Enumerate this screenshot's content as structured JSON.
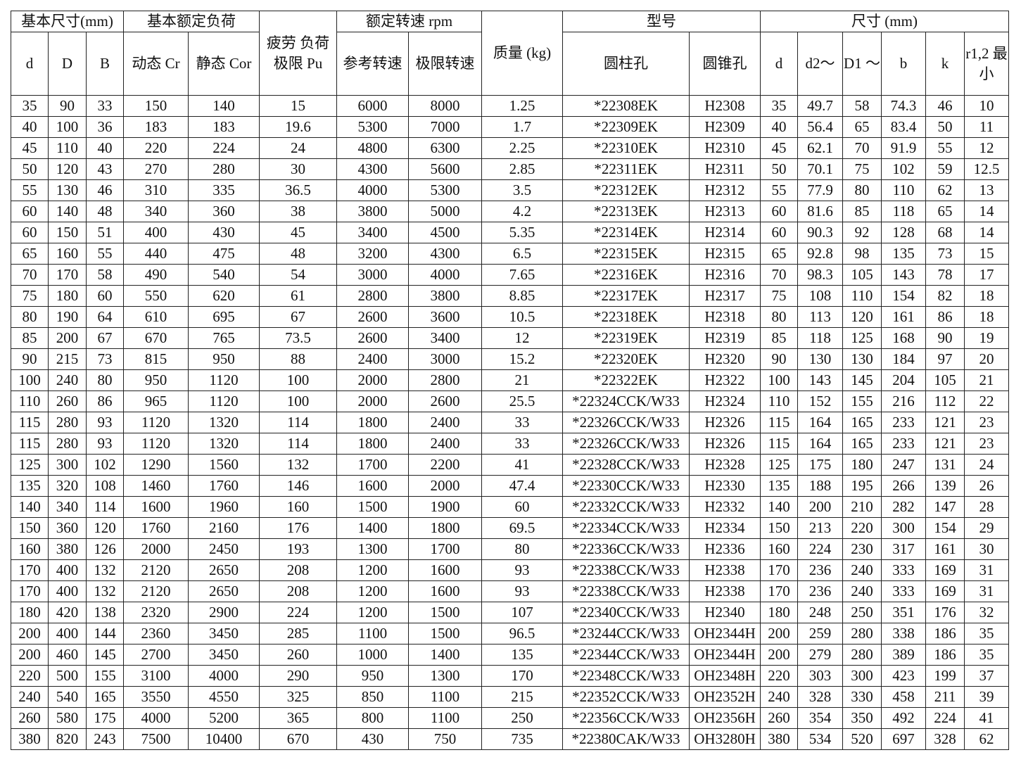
{
  "header": {
    "group_basic_dims": "基本尺寸(mm)",
    "group_load": "基本额定负荷",
    "fatigue": "疲劳 负荷 极限 Pu",
    "group_speed": "额定转速 rpm",
    "mass": "质量 (kg)",
    "group_model": "型号",
    "group_dims": "尺寸 (mm)",
    "cols": [
      "d",
      "D",
      "B",
      "动态 Cr",
      "静态 Cor",
      "参考转速",
      "极限转速",
      "圆柱孔",
      "圆锥孔",
      "d",
      "d2～",
      "D1 ～",
      "b",
      "k",
      "r1,2 最小"
    ]
  },
  "rows": [
    [
      "35",
      "90",
      "33",
      "150",
      "140",
      "15",
      "6000",
      "8000",
      "1.25",
      "*22308EK",
      "H2308",
      "35",
      "49.7",
      "58",
      "74.3",
      "46",
      "10"
    ],
    [
      "40",
      "100",
      "36",
      "183",
      "183",
      "19.6",
      "5300",
      "7000",
      "1.7",
      "*22309EK",
      "H2309",
      "40",
      "56.4",
      "65",
      "83.4",
      "50",
      "11"
    ],
    [
      "45",
      "110",
      "40",
      "220",
      "224",
      "24",
      "4800",
      "6300",
      "2.25",
      "*22310EK",
      "H2310",
      "45",
      "62.1",
      "70",
      "91.9",
      "55",
      "12"
    ],
    [
      "50",
      "120",
      "43",
      "270",
      "280",
      "30",
      "4300",
      "5600",
      "2.85",
      "*22311EK",
      "H2311",
      "50",
      "70.1",
      "75",
      "102",
      "59",
      "12.5"
    ],
    [
      "55",
      "130",
      "46",
      "310",
      "335",
      "36.5",
      "4000",
      "5300",
      "3.5",
      "*22312EK",
      "H2312",
      "55",
      "77.9",
      "80",
      "110",
      "62",
      "13"
    ],
    [
      "60",
      "140",
      "48",
      "340",
      "360",
      "38",
      "3800",
      "5000",
      "4.2",
      "*22313EK",
      "H2313",
      "60",
      "81.6",
      "85",
      "118",
      "65",
      "14"
    ],
    [
      "60",
      "150",
      "51",
      "400",
      "430",
      "45",
      "3400",
      "4500",
      "5.35",
      "*22314EK",
      "H2314",
      "60",
      "90.3",
      "92",
      "128",
      "68",
      "14"
    ],
    [
      "65",
      "160",
      "55",
      "440",
      "475",
      "48",
      "3200",
      "4300",
      "6.5",
      "*22315EK",
      "H2315",
      "65",
      "92.8",
      "98",
      "135",
      "73",
      "15"
    ],
    [
      "70",
      "170",
      "58",
      "490",
      "540",
      "54",
      "3000",
      "4000",
      "7.65",
      "*22316EK",
      "H2316",
      "70",
      "98.3",
      "105",
      "143",
      "78",
      "17"
    ],
    [
      "75",
      "180",
      "60",
      "550",
      "620",
      "61",
      "2800",
      "3800",
      "8.85",
      "*22317EK",
      "H2317",
      "75",
      "108",
      "110",
      "154",
      "82",
      "18"
    ],
    [
      "80",
      "190",
      "64",
      "610",
      "695",
      "67",
      "2600",
      "3600",
      "10.5",
      "*22318EK",
      "H2318",
      "80",
      "113",
      "120",
      "161",
      "86",
      "18"
    ],
    [
      "85",
      "200",
      "67",
      "670",
      "765",
      "73.5",
      "2600",
      "3400",
      "12",
      "*22319EK",
      "H2319",
      "85",
      "118",
      "125",
      "168",
      "90",
      "19"
    ],
    [
      "90",
      "215",
      "73",
      "815",
      "950",
      "88",
      "2400",
      "3000",
      "15.2",
      "*22320EK",
      "H2320",
      "90",
      "130",
      "130",
      "184",
      "97",
      "20"
    ],
    [
      "100",
      "240",
      "80",
      "950",
      "1120",
      "100",
      "2000",
      "2800",
      "21",
      "*22322EK",
      "H2322",
      "100",
      "143",
      "145",
      "204",
      "105",
      "21"
    ],
    [
      "110",
      "260",
      "86",
      "965",
      "1120",
      "100",
      "2000",
      "2600",
      "25.5",
      "*22324CCK/W33",
      "H2324",
      "110",
      "152",
      "155",
      "216",
      "112",
      "22"
    ],
    [
      "115",
      "280",
      "93",
      "1120",
      "1320",
      "114",
      "1800",
      "2400",
      "33",
      "*22326CCK/W33",
      "H2326",
      "115",
      "164",
      "165",
      "233",
      "121",
      "23"
    ],
    [
      "115",
      "280",
      "93",
      "1120",
      "1320",
      "114",
      "1800",
      "2400",
      "33",
      "*22326CCK/W33",
      "H2326",
      "115",
      "164",
      "165",
      "233",
      "121",
      "23"
    ],
    [
      "125",
      "300",
      "102",
      "1290",
      "1560",
      "132",
      "1700",
      "2200",
      "41",
      "*22328CCK/W33",
      "H2328",
      "125",
      "175",
      "180",
      "247",
      "131",
      "24"
    ],
    [
      "135",
      "320",
      "108",
      "1460",
      "1760",
      "146",
      "1600",
      "2000",
      "47.4",
      "*22330CCK/W33",
      "H2330",
      "135",
      "188",
      "195",
      "266",
      "139",
      "26"
    ],
    [
      "140",
      "340",
      "114",
      "1600",
      "1960",
      "160",
      "1500",
      "1900",
      "60",
      "*22332CCK/W33",
      "H2332",
      "140",
      "200",
      "210",
      "282",
      "147",
      "28"
    ],
    [
      "150",
      "360",
      "120",
      "1760",
      "2160",
      "176",
      "1400",
      "1800",
      "69.5",
      "*22334CCK/W33",
      "H2334",
      "150",
      "213",
      "220",
      "300",
      "154",
      "29"
    ],
    [
      "160",
      "380",
      "126",
      "2000",
      "2450",
      "193",
      "1300",
      "1700",
      "80",
      "*22336CCK/W33",
      "H2336",
      "160",
      "224",
      "230",
      "317",
      "161",
      "30"
    ],
    [
      "170",
      "400",
      "132",
      "2120",
      "2650",
      "208",
      "1200",
      "1600",
      "93",
      "*22338CCK/W33",
      "H2338",
      "170",
      "236",
      "240",
      "333",
      "169",
      "31"
    ],
    [
      "170",
      "400",
      "132",
      "2120",
      "2650",
      "208",
      "1200",
      "1600",
      "93",
      "*22338CCK/W33",
      "H2338",
      "170",
      "236",
      "240",
      "333",
      "169",
      "31"
    ],
    [
      "180",
      "420",
      "138",
      "2320",
      "2900",
      "224",
      "1200",
      "1500",
      "107",
      "*22340CCK/W33",
      "H2340",
      "180",
      "248",
      "250",
      "351",
      "176",
      "32"
    ],
    [
      "200",
      "400",
      "144",
      "2360",
      "3450",
      "285",
      "1100",
      "1500",
      "96.5",
      "*23244CCK/W33",
      "OH2344H",
      "200",
      "259",
      "280",
      "338",
      "186",
      "35"
    ],
    [
      "200",
      "460",
      "145",
      "2700",
      "3450",
      "260",
      "1000",
      "1400",
      "135",
      "*22344CCK/W33",
      "OH2344H",
      "200",
      "279",
      "280",
      "389",
      "186",
      "35"
    ],
    [
      "220",
      "500",
      "155",
      "3100",
      "4000",
      "290",
      "950",
      "1300",
      "170",
      "*22348CCK/W33",
      "OH2348H",
      "220",
      "303",
      "300",
      "423",
      "199",
      "37"
    ],
    [
      "240",
      "540",
      "165",
      "3550",
      "4550",
      "325",
      "850",
      "1100",
      "215",
      "*22352CCK/W33",
      "OH2352H",
      "240",
      "328",
      "330",
      "458",
      "211",
      "39"
    ],
    [
      "260",
      "580",
      "175",
      "4000",
      "5200",
      "365",
      "800",
      "1100",
      "250",
      "*22356CCK/W33",
      "OH2356H",
      "260",
      "354",
      "350",
      "492",
      "224",
      "41"
    ],
    [
      "380",
      "820",
      "243",
      "7500",
      "10400",
      "670",
      "430",
      "750",
      "735",
      "*22380CAK/W33",
      "OH3280H",
      "380",
      "534",
      "520",
      "697",
      "328",
      "62"
    ]
  ]
}
